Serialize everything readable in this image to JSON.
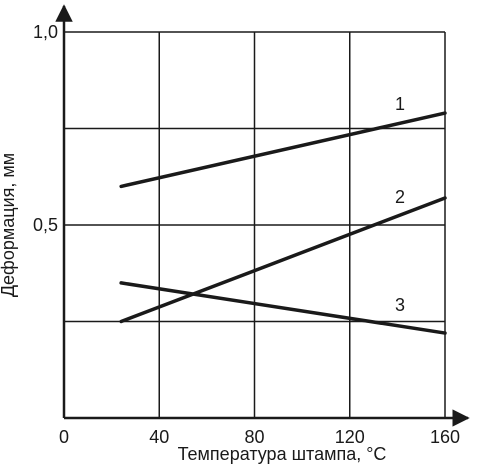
{
  "chart_data": {
    "type": "line",
    "xlabel": "Температура штампа, °C",
    "ylabel": "Деформация, мм",
    "xlim": [
      0,
      160
    ],
    "ylim": [
      0,
      1.0
    ],
    "x_ticks": [
      {
        "value": 0,
        "label": "0"
      },
      {
        "value": 40,
        "label": "40"
      },
      {
        "value": 80,
        "label": "80"
      },
      {
        "value": 120,
        "label": "120"
      },
      {
        "value": 160,
        "label": "160"
      }
    ],
    "y_ticks": [
      {
        "value": 0.5,
        "label": "0,5"
      },
      {
        "value": 1.0,
        "label": "1,0"
      }
    ],
    "grid": true,
    "x_gridlines": [
      40,
      80,
      120,
      160
    ],
    "y_gridlines": [
      0.25,
      0.5,
      0.75,
      1.0
    ],
    "series": [
      {
        "label": "1",
        "x": [
          24,
          160
        ],
        "y": [
          0.6,
          0.79
        ]
      },
      {
        "label": "2",
        "x": [
          24,
          160
        ],
        "y": [
          0.25,
          0.57
        ]
      },
      {
        "label": "3",
        "x": [
          24,
          160
        ],
        "y": [
          0.35,
          0.22
        ]
      }
    ],
    "colors": {
      "line": "#1a1a1a",
      "grid": "#1a1a1a"
    }
  }
}
